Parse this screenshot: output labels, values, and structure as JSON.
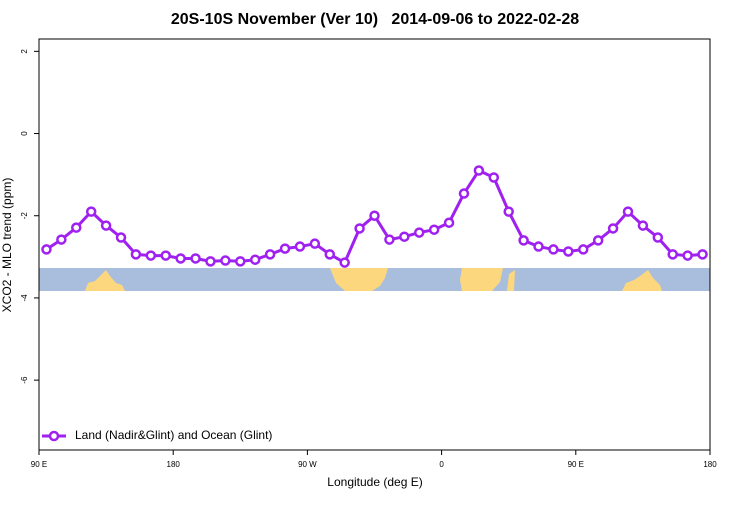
{
  "chart_data": {
    "type": "line",
    "title": "20S-10S November (Ver 10)   2014-09-06 to 2022-02-28",
    "xlabel": "Longitude (deg E)",
    "ylabel": "XCO2 - MLO trend (ppm)",
    "x": [
      95,
      105,
      115,
      125,
      135,
      145,
      155,
      165,
      175,
      185,
      195,
      205,
      215,
      225,
      235,
      245,
      255,
      265,
      275,
      285,
      295,
      305,
      315,
      325,
      335,
      345,
      355,
      365,
      375,
      385,
      395,
      405,
      415,
      425,
      435,
      445,
      455,
      465,
      475,
      485,
      495,
      505,
      515,
      525,
      535
    ],
    "series": [
      {
        "name": "Land (Nadir&Glint) and Ocean (Glint)",
        "color": "#a020f0",
        "values": [
          -2.82,
          -2.58,
          -2.29,
          -1.9,
          -2.24,
          -2.53,
          -2.94,
          -2.97,
          -2.97,
          -3.04,
          -3.04,
          -3.11,
          -3.09,
          -3.11,
          -3.07,
          -2.94,
          -2.8,
          -2.75,
          -2.68,
          -2.94,
          -3.14,
          -2.31,
          -2.0,
          -2.58,
          -2.51,
          -2.41,
          -2.34,
          -2.17,
          -1.46,
          -0.9,
          -1.07,
          -1.9,
          -2.6,
          -2.75,
          -2.82,
          -2.87,
          -2.82,
          -2.6,
          -2.31,
          -1.9,
          -2.24,
          -2.53,
          -2.94,
          -2.97,
          -2.94
        ]
      }
    ],
    "xlim": [
      90,
      540
    ],
    "xticks": [
      {
        "value": 90,
        "label": "90 E"
      },
      180,
      {
        "value": 270,
        "label": "90 W"
      },
      {
        "value": 360,
        "label": "0"
      },
      {
        "value": 450,
        "label": "90 E"
      },
      {
        "value": 540,
        "label": "180"
      }
    ],
    "ylim": [
      -7.7,
      2.3
    ],
    "yticks": [
      2,
      0,
      -2,
      -4,
      -6
    ],
    "legend": "bottomleft"
  }
}
